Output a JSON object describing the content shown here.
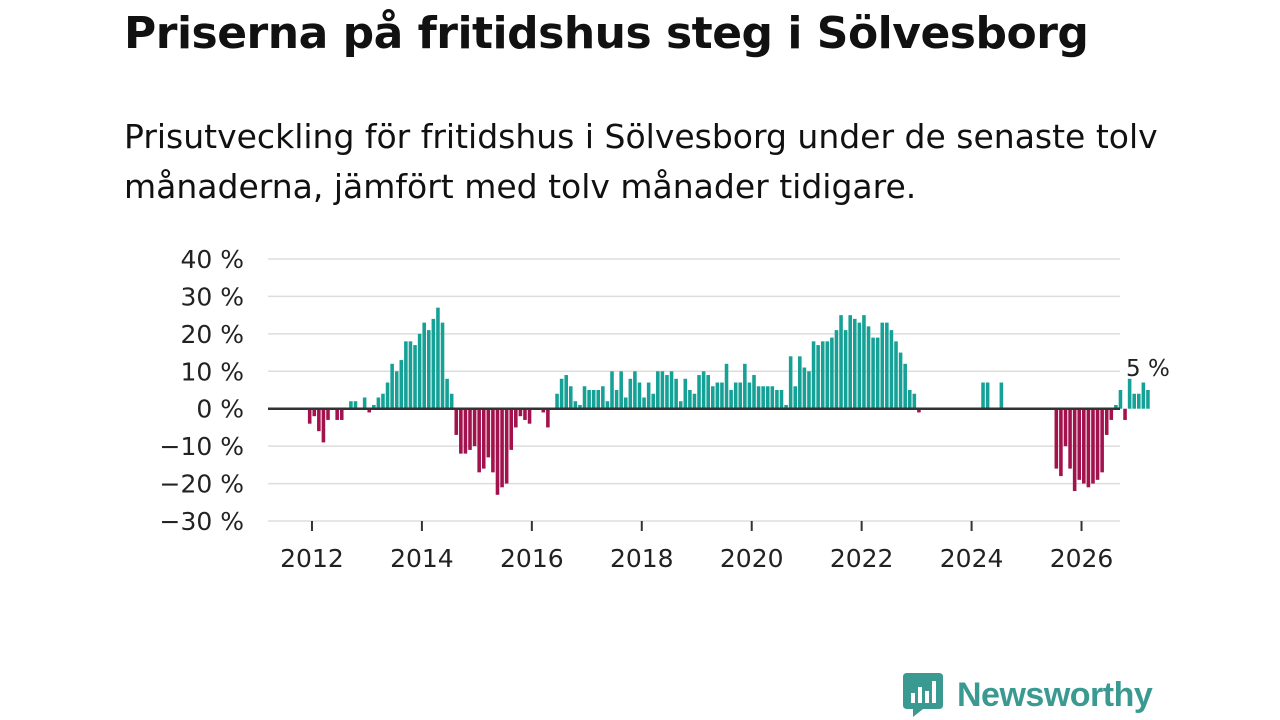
{
  "title": "Priserna på fritidshus steg i Sölvesborg",
  "subtitle": "Prisutveckling för fritidshus i Sölvesborg under de senaste tolv månaderna, jämfört med tolv månader tidigare.",
  "logo_text": "Newsworthy",
  "colors": {
    "positive": "#16a196",
    "negative": "#a2124d",
    "grid": "#dddddd",
    "zero": "#333333",
    "brand": "#3a9a91"
  },
  "chart_data": {
    "type": "bar",
    "title": "Priserna på fritidshus steg i Sölvesborg",
    "ylabel": "",
    "xlabel": "",
    "ylim": [
      -30,
      40
    ],
    "yticks": [
      40,
      30,
      20,
      10,
      0,
      -10,
      -20,
      -30
    ],
    "ytick_labels": [
      "40 %",
      "30 %",
      "20 %",
      "10 %",
      "0 %",
      "−10 %",
      "−20 %",
      "−30 %"
    ],
    "xlim": [
      2011.2,
      2026.7
    ],
    "xticks": [
      2012,
      2014,
      2016,
      2018,
      2020,
      2022,
      2024,
      2026
    ],
    "xtick_labels": [
      "2012",
      "2014",
      "2016",
      "2018",
      "2020",
      "2022",
      "2024",
      "2026"
    ],
    "start": [
      2011,
      12
    ],
    "unit": "month",
    "values": [
      -4,
      -2,
      -6,
      -9,
      -3,
      0,
      -3,
      -3,
      0,
      2,
      2,
      0,
      3,
      -1,
      1,
      3,
      4,
      7,
      12,
      10,
      13,
      18,
      18,
      17,
      20,
      23,
      21,
      24,
      27,
      23,
      8,
      4,
      -7,
      -12,
      -12,
      -11,
      -10,
      -17,
      -16,
      -13,
      -17,
      -23,
      -21,
      -20,
      -11,
      -5,
      -2,
      -3,
      -4,
      0,
      0,
      -1,
      -5,
      0,
      4,
      8,
      9,
      6,
      2,
      1,
      6,
      5,
      5,
      5,
      6,
      2,
      10,
      5,
      10,
      3,
      8,
      10,
      7,
      3,
      7,
      4,
      10,
      10,
      9,
      10,
      8,
      2,
      8,
      5,
      4,
      9,
      10,
      9,
      6,
      7,
      7,
      12,
      5,
      7,
      7,
      12,
      7,
      9,
      6,
      6,
      6,
      6,
      5,
      5,
      1,
      14,
      6,
      14,
      11,
      10,
      18,
      17,
      18,
      18,
      19,
      21,
      25,
      21,
      25,
      24,
      23,
      25,
      22,
      19,
      19,
      23,
      23,
      21,
      18,
      15,
      12,
      5,
      4,
      -1,
      0,
      0,
      0,
      0,
      0,
      0,
      0,
      0,
      0,
      0,
      0,
      0,
      0,
      7,
      7,
      0,
      0,
      7,
      0,
      0,
      0,
      0,
      0,
      0,
      0,
      0,
      0,
      0,
      0,
      -16,
      -18,
      -10,
      -16,
      -22,
      -19,
      -20,
      -21,
      -20,
      -19,
      -17,
      -7,
      -3,
      1,
      5,
      -3,
      8,
      4,
      4,
      7,
      5
    ],
    "annotations": [
      {
        "text": "5 %",
        "point": "last"
      }
    ]
  }
}
